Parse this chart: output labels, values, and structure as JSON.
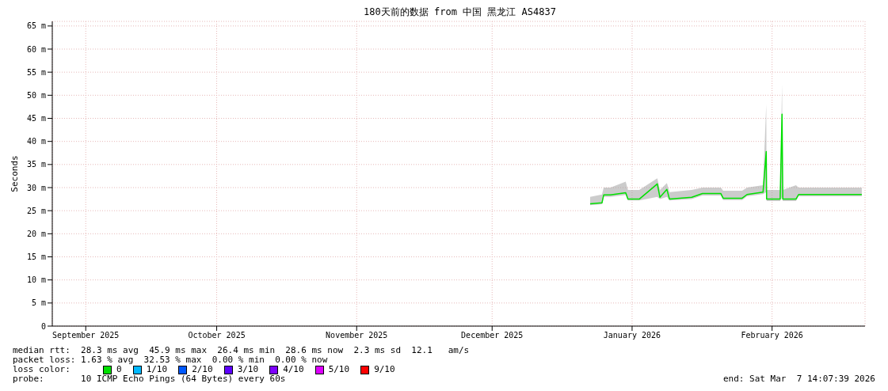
{
  "chart_data": {
    "type": "line",
    "title": "180天前的数据 from 中国 黑龙江 AS4837",
    "ylabel": "Seconds",
    "x": [
      "2026-01-05T17:00",
      "2026-01-08T08:00",
      "2026-01-08T17:00",
      "2026-01-10T05:00",
      "2026-01-13T14:00",
      "2026-01-14T02:00",
      "2026-01-16T14:00",
      "2026-01-20T14:00",
      "2026-01-21T04:00",
      "2026-01-22T17:00",
      "2026-01-23T07:00",
      "2026-01-28T05:00",
      "2026-01-30T14:00",
      "2026-02-03T16:00",
      "2026-02-04T04:00",
      "2026-02-08T09:00",
      "2026-02-09T11:00",
      "2026-02-13T00:00",
      "2026-02-13T17:00",
      "2026-02-13T19:00",
      "2026-02-16T19:00",
      "2026-02-17T05:00",
      "2026-02-17T09:00",
      "2026-02-20T07:00",
      "2026-02-20T21:00",
      "2026-03-06T21:00"
    ],
    "series": [
      {
        "name": "0",
        "color": "#00e000",
        "values": [
          26.5,
          26.7,
          28.4,
          28.4,
          28.9,
          27.5,
          27.5,
          30.8,
          27.9,
          29.6,
          27.5,
          27.9,
          28.7,
          28.7,
          27.7,
          27.7,
          28.5,
          29.0,
          37.8,
          27.5,
          27.5,
          45.9,
          27.5,
          27.5,
          28.5,
          28.5
        ],
        "lower": [
          26.2,
          26.4,
          28.0,
          28.0,
          28.4,
          27.2,
          27.2,
          28.0,
          27.5,
          28.0,
          27.2,
          27.5,
          28.3,
          28.3,
          27.3,
          27.3,
          28.1,
          28.6,
          29.0,
          27.1,
          27.1,
          28.0,
          27.1,
          27.1,
          28.1,
          28.1
        ],
        "upper": [
          28.0,
          28.5,
          30.0,
          30.0,
          31.3,
          29.5,
          29.5,
          32.0,
          29.5,
          31.0,
          29.0,
          29.5,
          30.0,
          30.0,
          29.3,
          29.3,
          30.0,
          30.5,
          48.0,
          29.5,
          29.5,
          52.3,
          29.5,
          30.5,
          30.0,
          30.0
        ]
      },
      {
        "name": "1/10",
        "color": "#00b8ff",
        "values": [
          null,
          null,
          null,
          null,
          null,
          null,
          null,
          null,
          null,
          null,
          null,
          null,
          null,
          null,
          null,
          null,
          null,
          null,
          null,
          null,
          null,
          null,
          null,
          null,
          null,
          null
        ]
      },
      {
        "name": "2/10",
        "color": "#0059ff",
        "values": [
          null,
          null,
          null,
          null,
          null,
          null,
          null,
          null,
          null,
          null,
          null,
          null,
          null,
          null,
          null,
          null,
          null,
          null,
          null,
          null,
          null,
          null,
          null,
          null,
          null,
          null
        ]
      },
      {
        "name": "3/10",
        "color": "#5e00ff",
        "values": [
          null,
          null,
          null,
          null,
          null,
          null,
          null,
          null,
          null,
          null,
          null,
          null,
          null,
          null,
          null,
          null,
          null,
          null,
          null,
          null,
          null,
          null,
          null,
          null,
          null,
          null
        ]
      },
      {
        "name": "4/10",
        "color": "#7e00ff",
        "values": [
          null,
          null,
          null,
          null,
          null,
          null,
          null,
          null,
          null,
          null,
          null,
          null,
          null,
          null,
          null,
          null,
          null,
          null,
          null,
          null,
          null,
          null,
          null,
          null,
          null,
          null
        ]
      },
      {
        "name": "5/10",
        "color": "#dd00ff",
        "values": [
          null,
          null,
          null,
          null,
          null,
          null,
          null,
          null,
          null,
          null,
          null,
          null,
          null,
          null,
          null,
          null,
          null,
          null,
          null,
          null,
          null,
          null,
          null,
          null,
          null,
          null
        ]
      },
      {
        "name": "9/10",
        "color": "#ff0000",
        "values": [
          null,
          null,
          null,
          null,
          null,
          null,
          null,
          null,
          null,
          null,
          null,
          null,
          null,
          null,
          null,
          null,
          null,
          null,
          null,
          null,
          null,
          null,
          null,
          null,
          null,
          null
        ]
      }
    ],
    "xlim": [
      "2025-09-08T14:07",
      "2026-03-07T14:07"
    ],
    "xticks": [
      {
        "value": "2025-09-16",
        "label": "September 2025"
      },
      {
        "value": "2025-10-15",
        "label": "October 2025"
      },
      {
        "value": "2025-11-15",
        "label": "November 2025"
      },
      {
        "value": "2025-12-15",
        "label": "December 2025"
      },
      {
        "value": "2026-01-15",
        "label": "January 2026"
      },
      {
        "value": "2026-02-15",
        "label": "February 2026"
      }
    ],
    "ylim": [
      0,
      66
    ],
    "yticks": [
      0,
      {
        "value": 5,
        "label": "5 m"
      },
      {
        "value": 10,
        "label": "10 m"
      },
      {
        "value": 15,
        "label": "15 m"
      },
      {
        "value": 20,
        "label": "20 m"
      },
      {
        "value": 25,
        "label": "25 m"
      },
      {
        "value": 30,
        "label": "30 m"
      },
      {
        "value": 35,
        "label": "35 m"
      },
      {
        "value": 40,
        "label": "40 m"
      },
      {
        "value": 45,
        "label": "45 m"
      },
      {
        "value": 50,
        "label": "50 m"
      },
      {
        "value": 55,
        "label": "55 m"
      },
      {
        "value": 60,
        "label": "60 m"
      },
      {
        "value": 65,
        "label": "65 m"
      }
    ],
    "grid": true,
    "legend": "bottom",
    "legend_title": "loss color:",
    "marker": "none",
    "line_style": "solid",
    "annotations": [
      "median rtt:  28.3 ms avg  45.9 ms max  26.4 ms min  28.6 ms now  2.3 ms sd  12.1   am/s",
      "packet loss: 1.63 % avg  32.53 % max  0.00 % min  0.00 % now",
      "probe:       10 ICMP Echo Pings (64 Bytes) every 60s",
      "end: Sat Mar  7 14:07:39 2026"
    ]
  }
}
